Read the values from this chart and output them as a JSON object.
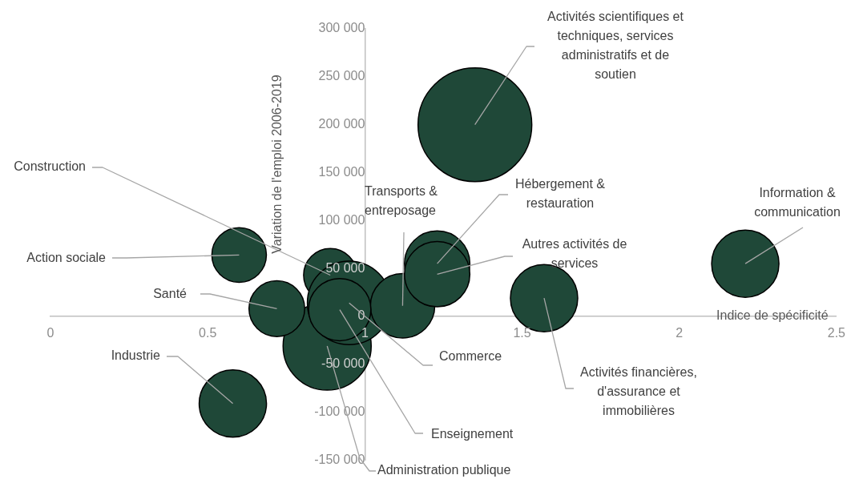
{
  "chart_data": {
    "type": "bubble",
    "xlabel": "Indice de spécificité",
    "ylabel": "Variation de l'emploi 2006-2019",
    "xlim": [
      0,
      2.5
    ],
    "xticks": [
      0,
      0.5,
      1,
      1.5,
      2,
      2.5
    ],
    "ylim": [
      -150000,
      300000
    ],
    "yticks": [
      {
        "value": -150000,
        "label": "-150 000"
      },
      {
        "value": -100000,
        "label": "-100 000"
      },
      {
        "value": -50000,
        "label": "-50 000"
      },
      {
        "value": 0,
        "label": "0"
      },
      {
        "value": 50000,
        "label": "50 000"
      },
      {
        "value": 100000,
        "label": "100 000"
      },
      {
        "value": 150000,
        "label": "150 000"
      },
      {
        "value": 200000,
        "label": "200 000"
      },
      {
        "value": 250000,
        "label": "250 000"
      },
      {
        "value": 300000,
        "label": "300 000"
      }
    ],
    "grid": false,
    "legend": false,
    "series": [
      {
        "color": "#1f4838",
        "x": [
          0.88,
          0.89,
          0.95,
          0.72,
          1.12,
          0.92,
          1.23,
          1.23,
          0.6,
          0.58,
          1.57,
          1.35,
          2.21
        ],
        "values": [
          -31000,
          43000,
          14000,
          8000,
          11000,
          7000,
          55000,
          44000,
          64000,
          -91000,
          19000,
          200000,
          55000
        ],
        "sizes": [
          0.6,
          0.22,
          0.54,
          0.24,
          0.32,
          0.3,
          0.33,
          0.33,
          0.23,
          0.35,
          0.35,
          1,
          0.35
        ]
      }
    ],
    "annotations": [
      {
        "text": "Administration publique",
        "x": 0.88,
        "y": -31000
      },
      {
        "text": "Construction",
        "x": 0.89,
        "y": 43000
      },
      {
        "text": "Commerce",
        "x": 0.95,
        "y": 14000
      },
      {
        "text": "Santé",
        "x": 0.72,
        "y": 8000
      },
      {
        "text": "Transports & entreposage",
        "x": 1.12,
        "y": 11000
      },
      {
        "text": "Enseignement",
        "x": 0.92,
        "y": 7000
      },
      {
        "text": "Hébergement & restauration",
        "x": 1.23,
        "y": 55000
      },
      {
        "text": "Autres activités de services",
        "x": 1.23,
        "y": 44000
      },
      {
        "text": "Action sociale",
        "x": 0.6,
        "y": 64000
      },
      {
        "text": "Industrie",
        "x": 0.58,
        "y": -91000
      },
      {
        "text": "Activités financières, d'assurance et immobilières",
        "x": 1.57,
        "y": 19000
      },
      {
        "text": "Activités scientifiques et techniques, services administratifs et de soutien",
        "x": 1.35,
        "y": 200000
      },
      {
        "text": "Information & communication",
        "x": 2.21,
        "y": 55000
      }
    ]
  }
}
